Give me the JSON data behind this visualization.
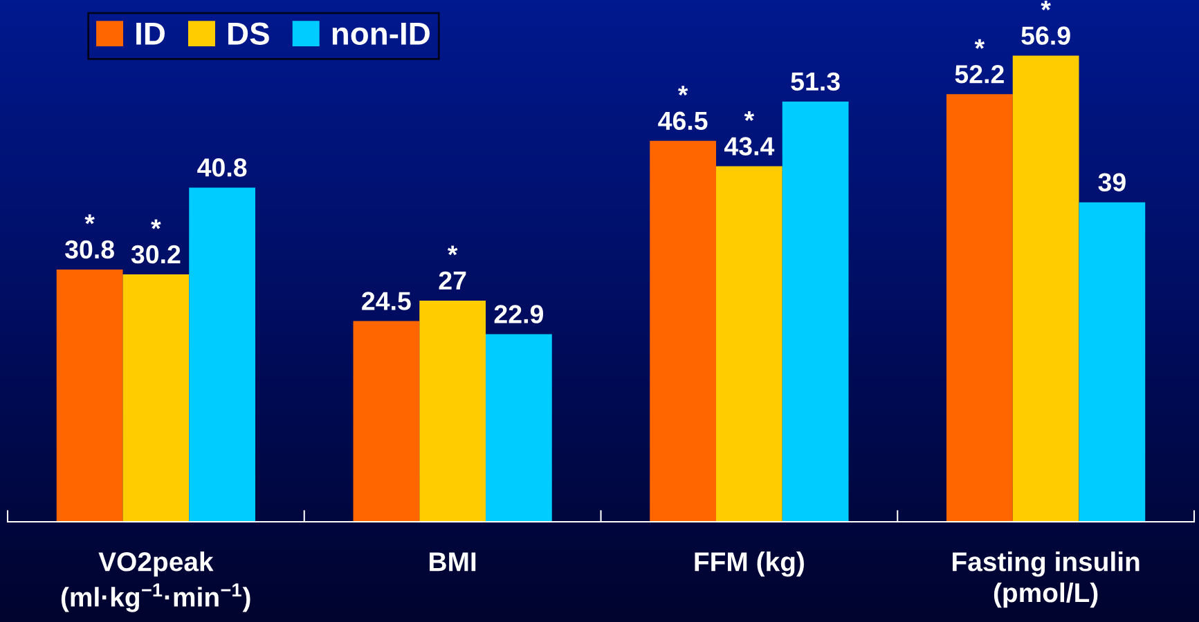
{
  "chart_data": {
    "type": "bar",
    "categories": [
      "VO2peak\n(ml·kg$^{−1}$·min$^{−1}$)",
      "BMI",
      "FFM (kg)",
      "Fasting insulin\n(pmol/L)"
    ],
    "series": [
      {
        "name": "ID",
        "color": "#ff6600",
        "values": [
          30.8,
          24.5,
          46.5,
          52.2
        ],
        "value_labels": [
          "*\n30.8",
          "24.5",
          "*\n46.5",
          "*\n52.2"
        ]
      },
      {
        "name": "DS",
        "color": "#ffcc00",
        "values": [
          30.2,
          27,
          43.4,
          56.9
        ],
        "value_labels": [
          "*\n30.2",
          "*\n27",
          "*\n43.4",
          "*\n56.9"
        ]
      },
      {
        "name": "non-ID",
        "color": "#00ccff",
        "values": [
          40.8,
          22.9,
          51.3,
          39
        ],
        "value_labels": [
          "40.8",
          "22.9",
          "51.3",
          "39"
        ]
      }
    ],
    "ylim": [
      0,
      63.7
    ],
    "legend": "top left",
    "tick_labels": "x"
  }
}
